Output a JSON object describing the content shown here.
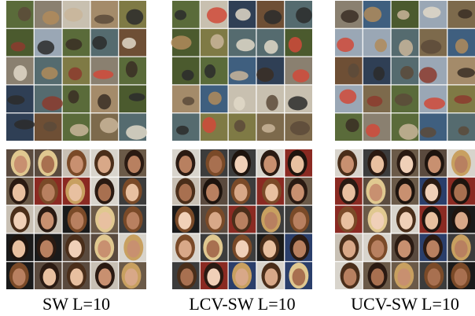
{
  "panels": [
    {
      "caption": "SW L=10"
    },
    {
      "caption": "LCV-SW L=10"
    },
    {
      "caption": "UCV-SW L=10"
    }
  ]
}
